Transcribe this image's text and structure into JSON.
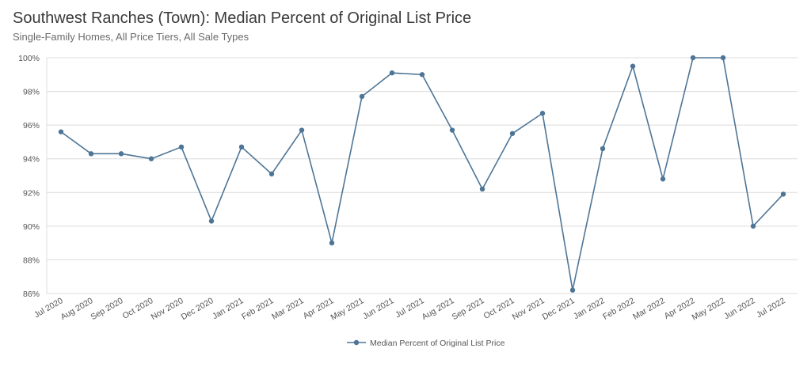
{
  "chart_data": {
    "type": "line",
    "title": "Southwest Ranches (Town): Median Percent of Original List Price",
    "subtitle": "Single-Family Homes, All Price Tiers, All Sale Types",
    "categories": [
      "Jul 2020",
      "Aug 2020",
      "Sep 2020",
      "Oct 2020",
      "Nov 2020",
      "Dec 2020",
      "Jan 2021",
      "Feb 2021",
      "Mar 2021",
      "Apr 2021",
      "May 2021",
      "Jun 2021",
      "Jul 2021",
      "Aug 2021",
      "Sep 2021",
      "Oct 2021",
      "Nov 2021",
      "Dec 2021",
      "Jan 2022",
      "Feb 2022",
      "Mar 2022",
      "Apr 2022",
      "May 2022",
      "Jun 2022",
      "Jul 2022"
    ],
    "series": [
      {
        "name": "Median Percent of Original List Price",
        "color": "#4e7596",
        "values": [
          95.6,
          94.3,
          94.3,
          94.0,
          94.7,
          90.3,
          94.7,
          93.1,
          95.7,
          89.0,
          97.7,
          99.1,
          99.0,
          95.7,
          92.2,
          95.5,
          96.7,
          86.2,
          94.6,
          99.5,
          92.8,
          100.0,
          100.0,
          90.0,
          91.9
        ]
      }
    ],
    "yticks": [
      "100%",
      "98%",
      "96%",
      "94%",
      "92%",
      "90%",
      "88%",
      "86%"
    ],
    "ylim": [
      86,
      100
    ],
    "grid": true,
    "legend_position": "bottom-center"
  }
}
